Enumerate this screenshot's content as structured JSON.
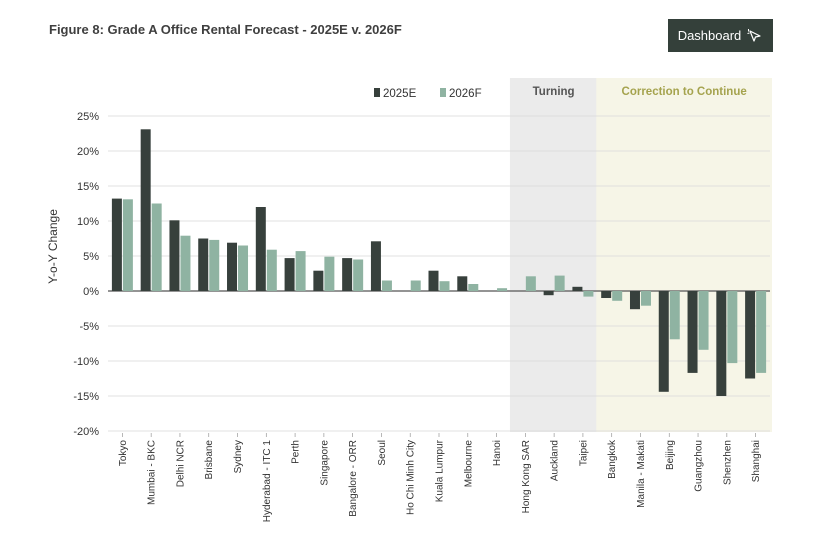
{
  "header": {
    "title": "Figure 8: Grade A Office Rental Forecast  - 2025E v. 2026F",
    "dashboard_label": "Dashboard"
  },
  "zones": {
    "turning_label": "Turning",
    "correction_label": "Correction to Continue"
  },
  "colors": {
    "series_2025": "#37403c",
    "series_2026": "#8fb3a2",
    "turning_bg": "#ebebeb",
    "correction_bg": "#f6f5e7",
    "correction_text": "#a5a34e",
    "turning_text": "#555555"
  },
  "chart_data": {
    "type": "bar",
    "title": "Figure 8: Grade A Office Rental Forecast  - 2025E v. 2026F",
    "xlabel": "",
    "ylabel": "Y-o-Y Change",
    "ylim": [
      -20,
      25
    ],
    "yticks": [
      25,
      20,
      15,
      10,
      5,
      0,
      -5,
      -10,
      -15,
      -20
    ],
    "ytick_labels": [
      "25%",
      "20%",
      "15%",
      "10%",
      "5%",
      "0%",
      "-5%",
      "-10%",
      "-15%",
      "-20%"
    ],
    "legend_position": "top",
    "categories": [
      "Tokyo",
      "Mumbai - BKC",
      "Delhi NCR",
      "Brisbane",
      "Sydney",
      "Hyderabad - ITC 1",
      "Perth",
      "Singapore",
      "Bangalore - ORR",
      "Seoul",
      "Ho Chi Minh City",
      "Kuala Lumpur",
      "Melbourne",
      "Hanoi",
      "Hong Kong SAR",
      "Auckland",
      "Taipei",
      "Bangkok",
      "Manila - Makati",
      "Beijing",
      "Guangzhou",
      "Shenzhen",
      "Shanghai"
    ],
    "series": [
      {
        "name": "2025E",
        "values": [
          13.2,
          23.1,
          10.1,
          7.5,
          6.9,
          12.0,
          4.7,
          2.9,
          4.7,
          7.1,
          0,
          2.9,
          2.1,
          0,
          0,
          -0.6,
          0.6,
          -1.0,
          -2.6,
          -14.4,
          -11.7,
          -15.0,
          -12.5
        ]
      },
      {
        "name": "2026F",
        "values": [
          13.1,
          12.5,
          7.9,
          7.3,
          6.5,
          5.9,
          5.7,
          4.9,
          4.5,
          1.5,
          1.5,
          1.4,
          1.0,
          0.4,
          2.1,
          2.2,
          -0.8,
          -1.4,
          -2.1,
          -6.9,
          -8.4,
          -10.3,
          -11.7
        ]
      }
    ],
    "zones": [
      {
        "name": "Turning",
        "categories": [
          "Hong Kong SAR",
          "Auckland",
          "Taipei"
        ]
      },
      {
        "name": "Correction to Continue",
        "categories": [
          "Bangkok",
          "Manila - Makati",
          "Beijing",
          "Guangzhou",
          "Shenzhen",
          "Shanghai"
        ]
      }
    ]
  }
}
